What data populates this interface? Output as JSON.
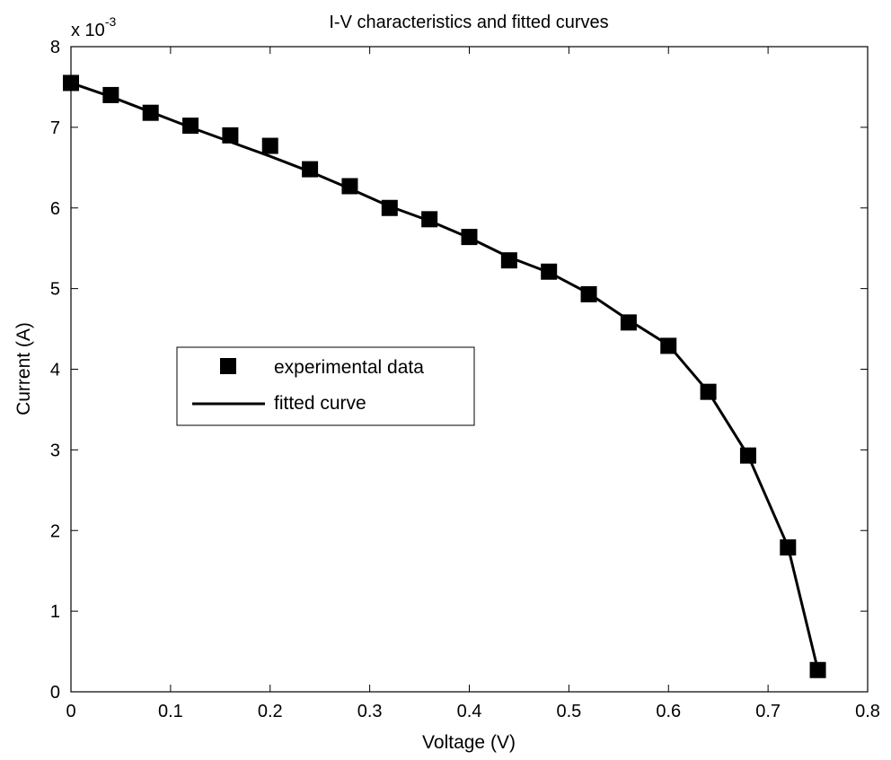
{
  "chart_data": {
    "type": "scatter",
    "title": "I-V characteristics and fitted curves",
    "xlabel": "Voltage (V)",
    "ylabel": "Current (A)",
    "y_multiplier_base": "x 10",
    "y_multiplier_exp": "-3",
    "xlim": [
      0,
      0.8
    ],
    "ylim": [
      0,
      8
    ],
    "x_ticks": [
      0,
      0.1,
      0.2,
      0.3,
      0.4,
      0.5,
      0.6,
      0.7,
      0.8
    ],
    "x_tick_labels": [
      "0",
      "0.1",
      "0.2",
      "0.3",
      "0.4",
      "0.5",
      "0.6",
      "0.7",
      "0.8"
    ],
    "y_ticks": [
      0,
      1,
      2,
      3,
      4,
      5,
      6,
      7,
      8
    ],
    "y_tick_labels": [
      "0",
      "1",
      "2",
      "3",
      "4",
      "5",
      "6",
      "7",
      "8"
    ],
    "grid": false,
    "legend_position": "center-left",
    "series": [
      {
        "name": "experimental data",
        "kind": "markers",
        "marker": "square",
        "color": "#000000",
        "x": [
          0.0,
          0.04,
          0.08,
          0.12,
          0.16,
          0.2,
          0.24,
          0.28,
          0.32,
          0.36,
          0.4,
          0.44,
          0.48,
          0.52,
          0.56,
          0.6,
          0.64,
          0.68,
          0.72,
          0.75
        ],
        "y": [
          7.55,
          7.4,
          7.18,
          7.02,
          6.9,
          6.77,
          6.48,
          6.27,
          6.0,
          5.86,
          5.64,
          5.35,
          5.21,
          4.93,
          4.58,
          4.29,
          3.72,
          2.93,
          1.79,
          0.27
        ]
      },
      {
        "name": "fitted curve",
        "kind": "line",
        "color": "#000000",
        "x": [
          0.0,
          0.04,
          0.08,
          0.12,
          0.16,
          0.2,
          0.24,
          0.28,
          0.32,
          0.36,
          0.4,
          0.44,
          0.48,
          0.52,
          0.56,
          0.6,
          0.64,
          0.68,
          0.72,
          0.75
        ],
        "y": [
          7.55,
          7.38,
          7.19,
          7.0,
          6.82,
          6.64,
          6.45,
          6.24,
          6.02,
          5.84,
          5.63,
          5.39,
          5.2,
          4.94,
          4.61,
          4.3,
          3.72,
          2.93,
          1.8,
          0.27
        ]
      }
    ]
  }
}
